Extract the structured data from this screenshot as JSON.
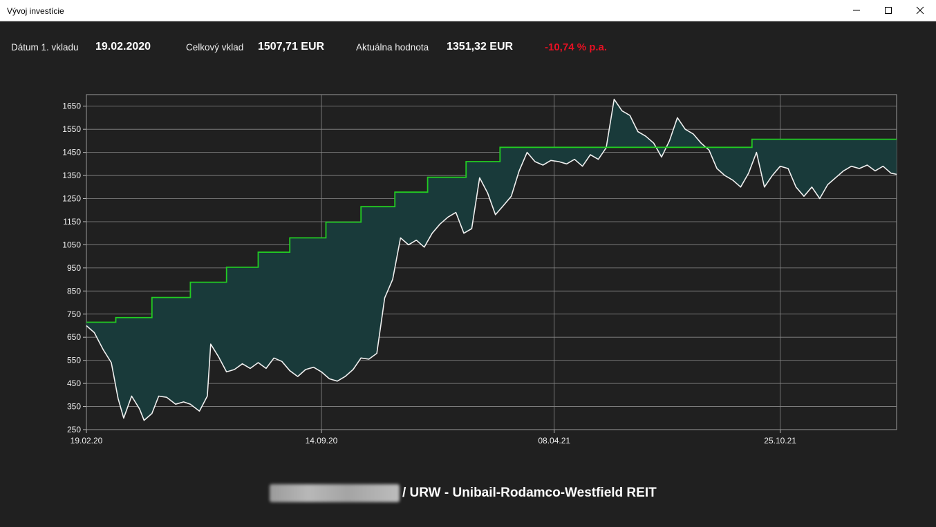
{
  "window": {
    "title": "Vývoj investície"
  },
  "stats": {
    "first_deposit_label": "Dátum 1. vkladu",
    "first_deposit_value": "19.02.2020",
    "total_deposit_label": "Celkový vklad",
    "total_deposit_value": "1507,71 EUR",
    "current_value_label": "Aktuálna hodnota",
    "current_value_value": "1351,32 EUR",
    "annual_return": "-10,74 % p.a."
  },
  "footer": {
    "title": "/ URW - Unibail-Rodamco-Westfield REIT"
  },
  "colors": {
    "invested_line": "#22cc22",
    "value_line": "#f0f0f0",
    "fill": "#193a3a",
    "negative": "#e81123"
  },
  "chart_data": {
    "type": "line",
    "ylim": [
      250,
      1700
    ],
    "yticks": [
      250,
      350,
      450,
      550,
      650,
      750,
      850,
      950,
      1050,
      1150,
      1250,
      1350,
      1450,
      1550,
      1650
    ],
    "xlim": [
      "2020-02-19",
      "2022-02-05"
    ],
    "xticks": [
      "19.02.20",
      "14.09.20",
      "08.04.21",
      "25.10.21"
    ],
    "grid": true,
    "series": [
      {
        "points": [
          [
            "2020-02-19",
            715
          ],
          [
            "2020-03-16",
            715
          ],
          [
            "2020-03-16",
            735
          ],
          [
            "2020-04-17",
            735
          ],
          [
            "2020-04-17",
            822
          ],
          [
            "2020-05-21",
            822
          ],
          [
            "2020-05-21",
            888
          ],
          [
            "2020-06-22",
            888
          ],
          [
            "2020-06-22",
            953
          ],
          [
            "2020-07-20",
            953
          ],
          [
            "2020-07-20",
            1018
          ],
          [
            "2020-08-17",
            1018
          ],
          [
            "2020-08-17",
            1080
          ],
          [
            "2020-09-18",
            1080
          ],
          [
            "2020-09-18",
            1148
          ],
          [
            "2020-10-19",
            1148
          ],
          [
            "2020-10-19",
            1215
          ],
          [
            "2020-11-18",
            1215
          ],
          [
            "2020-11-18",
            1278
          ],
          [
            "2020-12-17",
            1278
          ],
          [
            "2020-12-17",
            1342
          ],
          [
            "2021-01-20",
            1342
          ],
          [
            "2021-01-20",
            1410
          ],
          [
            "2021-02-19",
            1410
          ],
          [
            "2021-02-19",
            1472
          ],
          [
            "2021-09-30",
            1472
          ],
          [
            "2021-09-30",
            1507
          ],
          [
            "2022-02-05",
            1507
          ]
        ]
      },
      {
        "points": [
          [
            "2020-02-19",
            700
          ],
          [
            "2020-02-26",
            670
          ],
          [
            "2020-03-05",
            595
          ],
          [
            "2020-03-12",
            540
          ],
          [
            "2020-03-18",
            385
          ],
          [
            "2020-03-23",
            300
          ],
          [
            "2020-03-30",
            395
          ],
          [
            "2020-04-06",
            340
          ],
          [
            "2020-04-10",
            290
          ],
          [
            "2020-04-17",
            320
          ],
          [
            "2020-04-23",
            395
          ],
          [
            "2020-04-30",
            390
          ],
          [
            "2020-05-08",
            360
          ],
          [
            "2020-05-15",
            370
          ],
          [
            "2020-05-21",
            360
          ],
          [
            "2020-05-29",
            330
          ],
          [
            "2020-06-05",
            395
          ],
          [
            "2020-06-08",
            620
          ],
          [
            "2020-06-15",
            565
          ],
          [
            "2020-06-22",
            500
          ],
          [
            "2020-06-29",
            510
          ],
          [
            "2020-07-06",
            535
          ],
          [
            "2020-07-13",
            515
          ],
          [
            "2020-07-20",
            540
          ],
          [
            "2020-07-27",
            515
          ],
          [
            "2020-08-03",
            560
          ],
          [
            "2020-08-10",
            545
          ],
          [
            "2020-08-17",
            505
          ],
          [
            "2020-08-24",
            480
          ],
          [
            "2020-08-31",
            510
          ],
          [
            "2020-09-07",
            520
          ],
          [
            "2020-09-14",
            500
          ],
          [
            "2020-09-21",
            470
          ],
          [
            "2020-09-28",
            460
          ],
          [
            "2020-10-05",
            480
          ],
          [
            "2020-10-12",
            510
          ],
          [
            "2020-10-19",
            560
          ],
          [
            "2020-10-26",
            555
          ],
          [
            "2020-11-02",
            580
          ],
          [
            "2020-11-09",
            820
          ],
          [
            "2020-11-16",
            900
          ],
          [
            "2020-11-23",
            1080
          ],
          [
            "2020-11-30",
            1050
          ],
          [
            "2020-12-07",
            1070
          ],
          [
            "2020-12-14",
            1040
          ],
          [
            "2020-12-21",
            1100
          ],
          [
            "2020-12-28",
            1140
          ],
          [
            "2021-01-04",
            1170
          ],
          [
            "2021-01-11",
            1190
          ],
          [
            "2021-01-18",
            1100
          ],
          [
            "2021-01-25",
            1120
          ],
          [
            "2021-02-01",
            1340
          ],
          [
            "2021-02-08",
            1275
          ],
          [
            "2021-02-15",
            1180
          ],
          [
            "2021-02-22",
            1220
          ],
          [
            "2021-03-01",
            1260
          ],
          [
            "2021-03-08",
            1370
          ],
          [
            "2021-03-15",
            1450
          ],
          [
            "2021-03-22",
            1410
          ],
          [
            "2021-03-29",
            1395
          ],
          [
            "2021-04-05",
            1415
          ],
          [
            "2021-04-12",
            1410
          ],
          [
            "2021-04-19",
            1400
          ],
          [
            "2021-04-26",
            1420
          ],
          [
            "2021-05-03",
            1390
          ],
          [
            "2021-05-10",
            1440
          ],
          [
            "2021-05-17",
            1420
          ],
          [
            "2021-05-24",
            1470
          ],
          [
            "2021-05-31",
            1680
          ],
          [
            "2021-06-07",
            1630
          ],
          [
            "2021-06-14",
            1610
          ],
          [
            "2021-06-21",
            1540
          ],
          [
            "2021-06-28",
            1520
          ],
          [
            "2021-07-05",
            1490
          ],
          [
            "2021-07-12",
            1430
          ],
          [
            "2021-07-19",
            1500
          ],
          [
            "2021-07-26",
            1600
          ],
          [
            "2021-08-02",
            1550
          ],
          [
            "2021-08-09",
            1530
          ],
          [
            "2021-08-16",
            1490
          ],
          [
            "2021-08-23",
            1460
          ],
          [
            "2021-08-30",
            1380
          ],
          [
            "2021-09-06",
            1350
          ],
          [
            "2021-09-13",
            1330
          ],
          [
            "2021-09-20",
            1300
          ],
          [
            "2021-09-27",
            1360
          ],
          [
            "2021-10-04",
            1450
          ],
          [
            "2021-10-11",
            1300
          ],
          [
            "2021-10-18",
            1350
          ],
          [
            "2021-10-25",
            1390
          ],
          [
            "2021-11-01",
            1380
          ],
          [
            "2021-11-08",
            1300
          ],
          [
            "2021-11-15",
            1260
          ],
          [
            "2021-11-22",
            1300
          ],
          [
            "2021-11-29",
            1250
          ],
          [
            "2021-12-06",
            1310
          ],
          [
            "2021-12-13",
            1340
          ],
          [
            "2021-12-20",
            1370
          ],
          [
            "2021-12-27",
            1390
          ],
          [
            "2022-01-03",
            1380
          ],
          [
            "2022-01-10",
            1395
          ],
          [
            "2022-01-17",
            1370
          ],
          [
            "2022-01-24",
            1390
          ],
          [
            "2022-01-31",
            1360
          ],
          [
            "2022-02-05",
            1355
          ]
        ]
      }
    ]
  }
}
